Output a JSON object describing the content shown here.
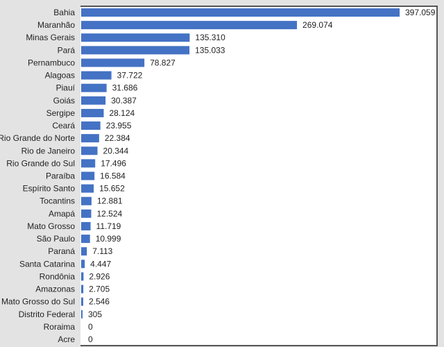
{
  "chart_data": {
    "type": "bar",
    "orientation": "horizontal",
    "categories": [
      "Bahia",
      "Maranhão",
      "Minas Gerais",
      "Pará",
      "Pernambuco",
      "Alagoas",
      "Piauí",
      "Goiás",
      "Sergipe",
      "Ceará",
      "Rio Grande do Norte",
      "Rio de Janeiro",
      "Rio Grande do Sul",
      "Paraíba",
      "Espírito Santo",
      "Tocantins",
      "Amapá",
      "Mato Grosso",
      "São Paulo",
      "Paraná",
      "Santa Catarina",
      "Rondônia",
      "Amazonas",
      "Mato Grosso do Sul",
      "Distrito Federal",
      "Roraima",
      "Acre"
    ],
    "values": [
      397059,
      269074,
      135310,
      135033,
      78827,
      37722,
      31686,
      30387,
      28124,
      23955,
      22384,
      20344,
      17496,
      16584,
      15652,
      12881,
      12524,
      11719,
      10999,
      7113,
      4447,
      2926,
      2705,
      2546,
      305,
      0,
      0
    ],
    "labels": [
      "397.059",
      "269.074",
      "135.310",
      "135.033",
      "78.827",
      "37.722",
      "31.686",
      "30.387",
      "28.124",
      "23.955",
      "22.384",
      "20.344",
      "17.496",
      "16.584",
      "15.652",
      "12.881",
      "12.524",
      "11.719",
      "10.999",
      "7.113",
      "4.447",
      "2.926",
      "2.705",
      "2.546",
      "305",
      "0",
      "0"
    ],
    "xlim": [
      0,
      443000
    ],
    "grid": false,
    "legend": "none",
    "bar_color": "#4472C4",
    "title": "",
    "xlabel": "",
    "ylabel": ""
  }
}
